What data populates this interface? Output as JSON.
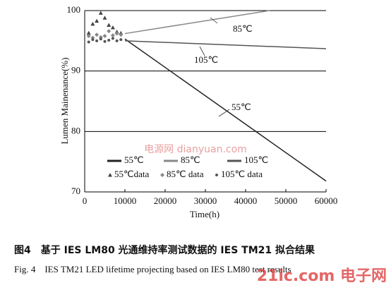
{
  "chart_data": {
    "type": "line",
    "xlabel": "Time(h)",
    "ylabel": "Lumen Mainenance(%)",
    "xlim": [
      0,
      60000
    ],
    "xticks": [
      0,
      10000,
      20000,
      30000,
      40000,
      50000,
      60000
    ],
    "ylim": [
      70,
      100
    ],
    "yticks": [
      70,
      80,
      90,
      100
    ],
    "grid": true,
    "series": [
      {
        "name": "55℃",
        "style": "line",
        "color": "#222222",
        "x": [
          10000,
          60000
        ],
        "values": [
          95.3,
          71.8
        ]
      },
      {
        "name": "85℃",
        "style": "line",
        "color": "#888888",
        "x": [
          10000,
          46000
        ],
        "values": [
          96.2,
          100
        ]
      },
      {
        "name": "105℃",
        "style": "line",
        "color": "#555555",
        "x": [
          10000,
          60000
        ],
        "values": [
          95,
          93.7
        ]
      },
      {
        "name": "55℃data",
        "style": "triangle",
        "color": "#444444",
        "x": [
          1000,
          2000,
          3000,
          4000,
          5000,
          6000,
          7000,
          8000,
          9000
        ],
        "values": [
          96.3,
          97.8,
          98.3,
          99.6,
          98.8,
          97.6,
          97.2,
          96.5,
          96.3
        ]
      },
      {
        "name": "85℃ data",
        "style": "diamond",
        "color": "#888888",
        "x": [
          1000,
          2000,
          3000,
          4000,
          5000,
          6000,
          7000,
          8000,
          9000
        ],
        "values": [
          95.8,
          95.5,
          96,
          95.6,
          95.8,
          96.6,
          95.9,
          96.2,
          96
        ]
      },
      {
        "name": "105℃ data",
        "style": "dot",
        "color": "#555555",
        "x": [
          1000,
          2000,
          3000,
          4000,
          5000,
          6000,
          7000,
          8000,
          9000
        ],
        "values": [
          94.8,
          95.2,
          95,
          95.3,
          94.9,
          95.1,
          95.4,
          95,
          95.2
        ]
      }
    ],
    "annotations": [
      "85℃",
      "105℃",
      "55℃"
    ]
  },
  "caption_cn": "图4　基于 IES LM80 光通维持率测试数据的 IES TM21 拟合结果",
  "caption_en": "Fig. 4　IES TM21 LED lifetime projecting based on IES LM80 test results",
  "watermarks": [
    "电源网 dianyuan.com",
    "21ic.com 电子网"
  ]
}
